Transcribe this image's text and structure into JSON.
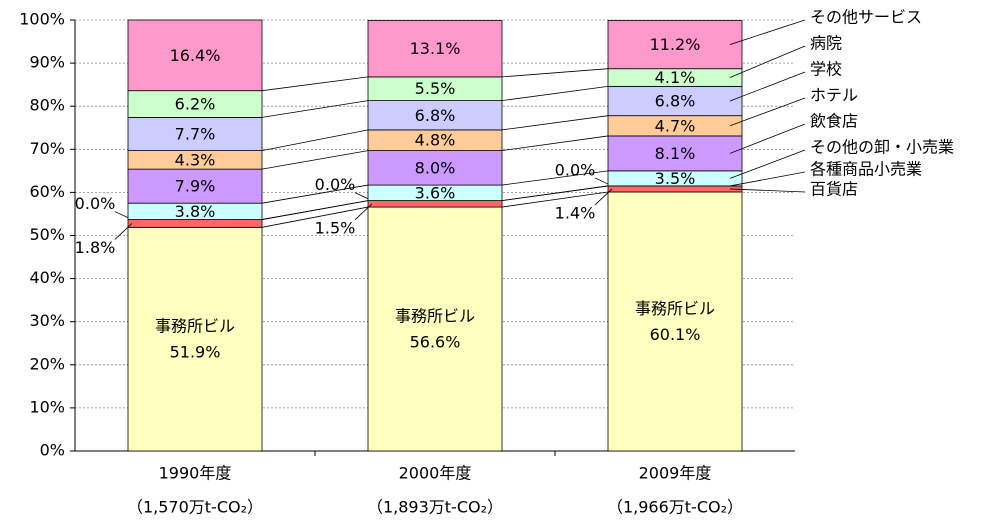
{
  "chart_data": {
    "type": "stacked_bar",
    "categories": [
      "1990年度",
      "2000年度",
      "2009年度"
    ],
    "category_sublabels": [
      "（1,570万t-CO₂）",
      "（1,893万t-CO₂）",
      "（1,966万t-CO₂）"
    ],
    "series": [
      {
        "name": "事務所ビル",
        "color": "#ffffc0",
        "values": [
          51.9,
          56.6,
          60.1
        ],
        "value_labels": [
          "51.9%",
          "56.6%",
          "60.1%"
        ]
      },
      {
        "name": "百貨店",
        "color": "#ff6666",
        "values": [
          1.8,
          1.5,
          1.4
        ],
        "value_labels": [
          "1.8%",
          "1.5%",
          "1.4%"
        ]
      },
      {
        "name": "各種商品小売業",
        "color": "#99ccff",
        "values": [
          0.0,
          0.0,
          0.0
        ],
        "value_labels": [
          "0.0%",
          "0.0%",
          "0.0%"
        ]
      },
      {
        "name": "その他の卸・小売業",
        "color": "#ccffff",
        "values": [
          3.8,
          3.6,
          3.5
        ],
        "value_labels": [
          "3.8%",
          "3.6%",
          "3.5%"
        ]
      },
      {
        "name": "飲食店",
        "color": "#cc99ff",
        "values": [
          7.9,
          8.0,
          8.1
        ],
        "value_labels": [
          "7.9%",
          "8.0%",
          "8.1%"
        ]
      },
      {
        "name": "ホテル",
        "color": "#ffcc99",
        "values": [
          4.3,
          4.8,
          4.7
        ],
        "value_labels": [
          "4.3%",
          "4.8%",
          "4.7%"
        ]
      },
      {
        "name": "学校",
        "color": "#ccccff",
        "values": [
          7.7,
          6.8,
          6.8
        ],
        "value_labels": [
          "7.7%",
          "6.8%",
          "6.8%"
        ]
      },
      {
        "name": "病院",
        "color": "#ccffcc",
        "values": [
          6.2,
          5.5,
          4.1
        ],
        "value_labels": [
          "6.2%",
          "5.5%",
          "4.1%"
        ]
      },
      {
        "name": "その他サービス",
        "color": "#ff99cc",
        "values": [
          16.4,
          13.1,
          11.2
        ],
        "value_labels": [
          "16.4%",
          "13.1%",
          "11.2%"
        ]
      }
    ],
    "ylim": [
      0,
      100
    ],
    "yticks": [
      {
        "value": 0,
        "label": "0%"
      },
      {
        "value": 10,
        "label": "10%"
      },
      {
        "value": 20,
        "label": "20%"
      },
      {
        "value": 30,
        "label": "30%"
      },
      {
        "value": 40,
        "label": "40%"
      },
      {
        "value": 50,
        "label": "50%"
      },
      {
        "value": 60,
        "label": "60%"
      },
      {
        "value": 70,
        "label": "70%"
      },
      {
        "value": 80,
        "label": "80%"
      },
      {
        "value": 90,
        "label": "90%"
      },
      {
        "value": 100,
        "label": "100%"
      }
    ],
    "grid": true
  }
}
